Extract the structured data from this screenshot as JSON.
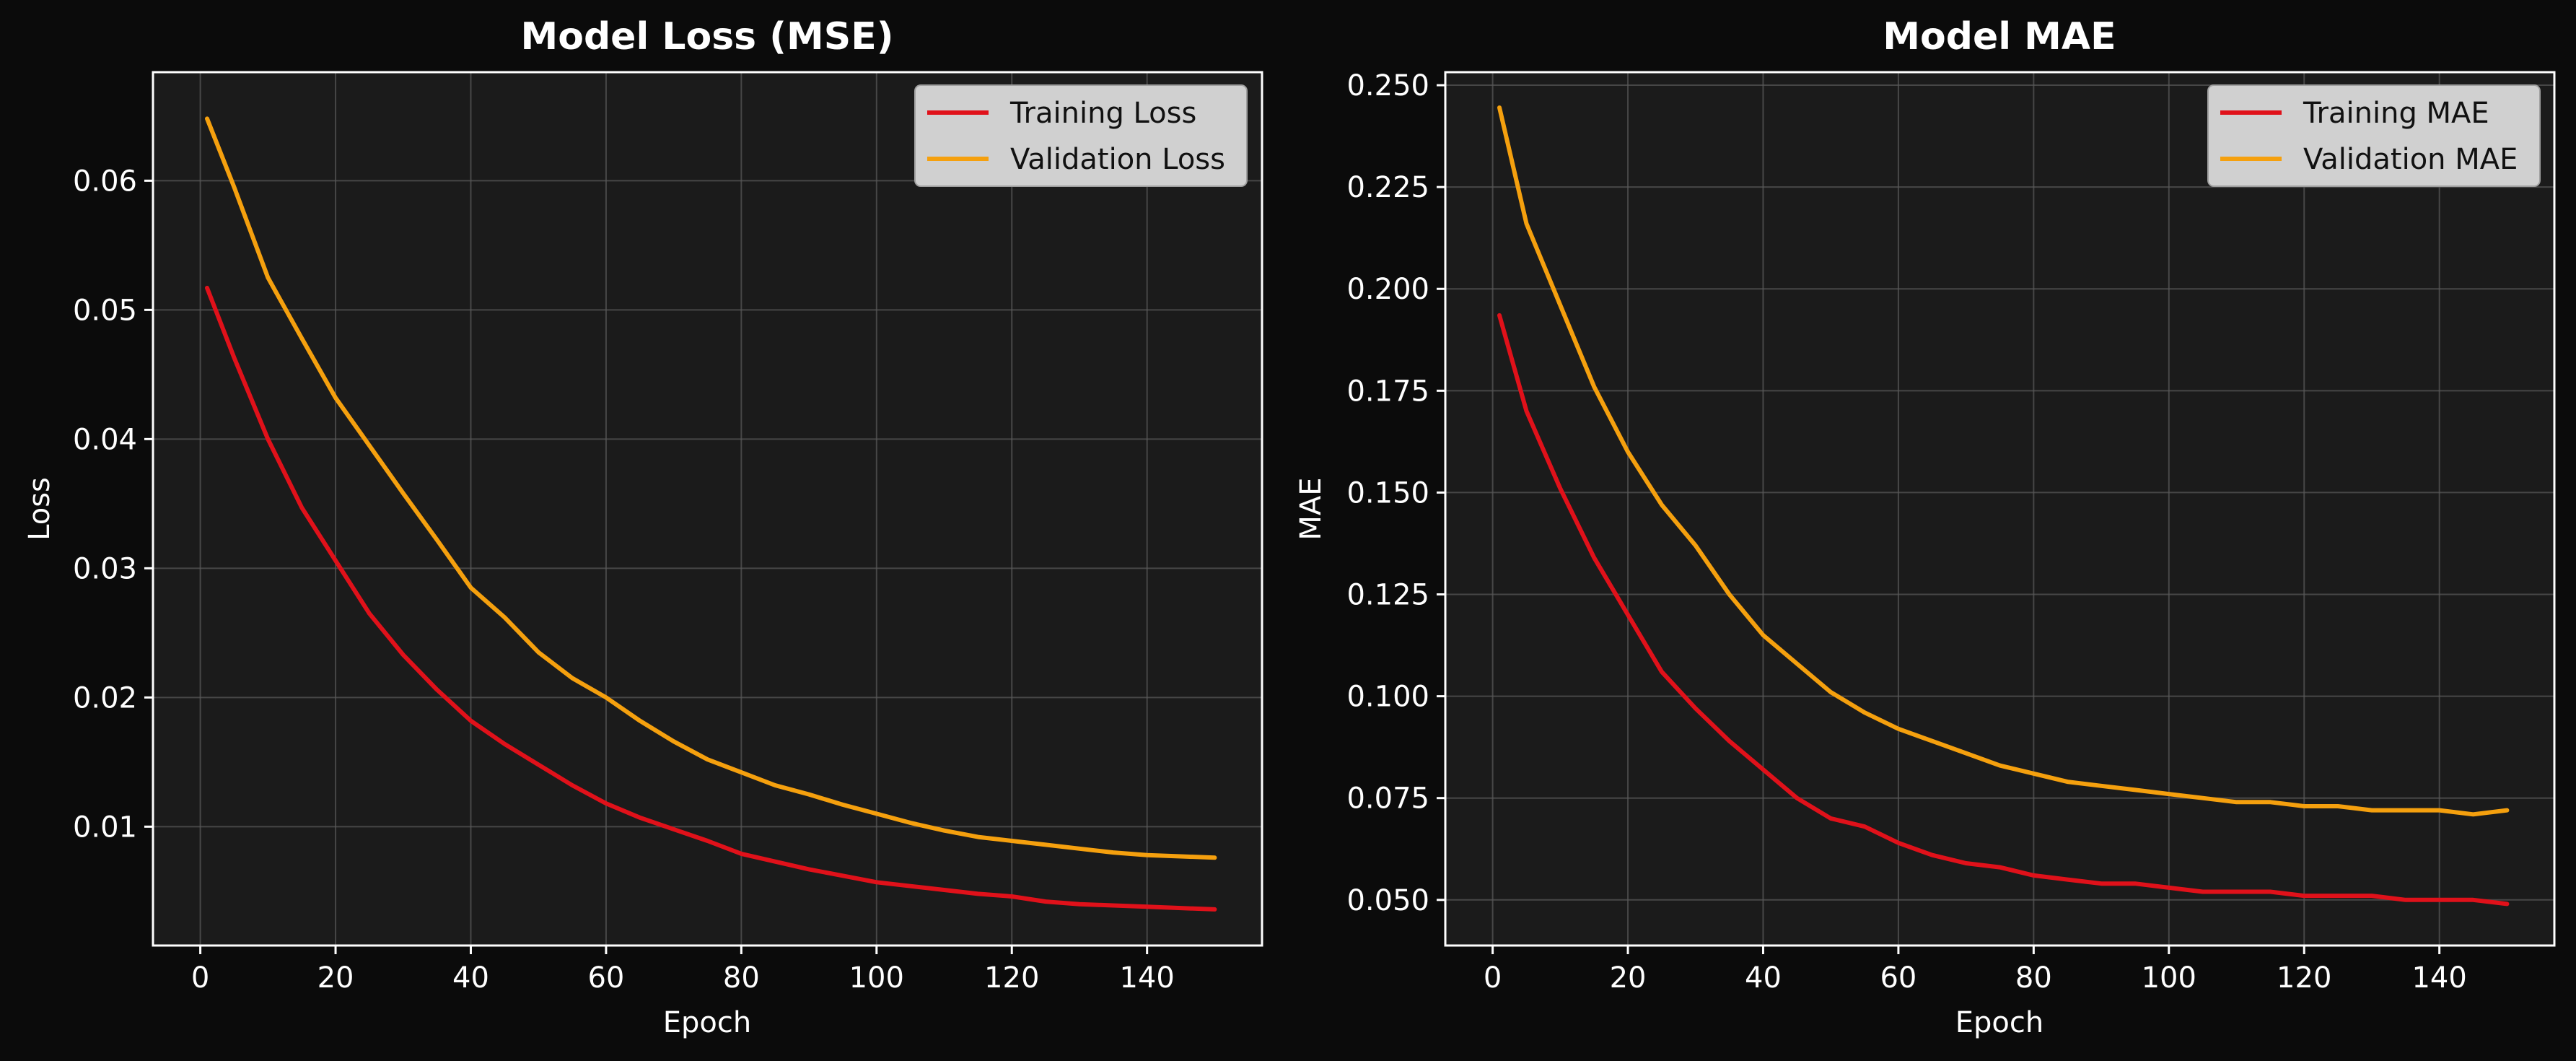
{
  "colors": {
    "figure_bg": "#0b0b0b",
    "axes_bg": "#1b1b1b",
    "text": "#ffffff",
    "grid": "#5a5a5a",
    "training": "#e0111a",
    "validation": "#f5a00e",
    "legend_bg": "#d0d0d0",
    "legend_text": "#111111"
  },
  "chart_data": [
    {
      "type": "line",
      "title": "Model Loss (MSE)",
      "xlabel": "Epoch",
      "ylabel": "Loss",
      "xlim": [
        -7,
        157
      ],
      "ylim": [
        0.0008,
        0.0684
      ],
      "xticks": [
        0,
        20,
        40,
        60,
        80,
        100,
        120,
        140
      ],
      "xtick_labels": [
        "0",
        "20",
        "40",
        "60",
        "80",
        "100",
        "120",
        "140"
      ],
      "yticks": [
        0.01,
        0.02,
        0.03,
        0.04,
        0.05,
        0.06
      ],
      "ytick_labels": [
        "0.01",
        "0.02",
        "0.03",
        "0.04",
        "0.05",
        "0.06"
      ],
      "grid": true,
      "legend": "top-right",
      "x": [
        1,
        5,
        10,
        15,
        20,
        25,
        30,
        35,
        40,
        45,
        50,
        55,
        60,
        65,
        70,
        75,
        80,
        85,
        90,
        95,
        100,
        105,
        110,
        115,
        120,
        125,
        130,
        135,
        140,
        145,
        150
      ],
      "series": [
        {
          "name": "Training Loss",
          "color": "#e0111a",
          "values": [
            0.0517,
            0.0463,
            0.04,
            0.0347,
            0.0306,
            0.0265,
            0.0233,
            0.0206,
            0.0182,
            0.0164,
            0.0148,
            0.0132,
            0.0118,
            0.0107,
            0.0098,
            0.0089,
            0.0079,
            0.0073,
            0.0067,
            0.0062,
            0.0057,
            0.0054,
            0.0051,
            0.0048,
            0.0046,
            0.0042,
            0.004,
            0.0039,
            0.0038,
            0.0037,
            0.0036
          ]
        },
        {
          "name": "Validation Loss",
          "color": "#f5a00e",
          "values": [
            0.0648,
            0.0595,
            0.0525,
            0.0478,
            0.0432,
            0.0395,
            0.0358,
            0.0322,
            0.0285,
            0.0262,
            0.0235,
            0.0215,
            0.02,
            0.0182,
            0.0166,
            0.0152,
            0.0142,
            0.0132,
            0.0125,
            0.0117,
            0.011,
            0.0103,
            0.0097,
            0.0092,
            0.0089,
            0.0086,
            0.0083,
            0.008,
            0.0078,
            0.0077,
            0.0076
          ]
        }
      ]
    },
    {
      "type": "line",
      "title": "Model MAE",
      "xlabel": "Epoch",
      "ylabel": "MAE",
      "xlim": [
        -7,
        157
      ],
      "ylim": [
        0.0388,
        0.2532
      ],
      "xticks": [
        0,
        20,
        40,
        60,
        80,
        100,
        120,
        140
      ],
      "xtick_labels": [
        "0",
        "20",
        "40",
        "60",
        "80",
        "100",
        "120",
        "140"
      ],
      "yticks": [
        0.05,
        0.075,
        0.1,
        0.125,
        0.15,
        0.175,
        0.2,
        0.225,
        0.25
      ],
      "ytick_labels": [
        "0.050",
        "0.075",
        "0.100",
        "0.125",
        "0.150",
        "0.175",
        "0.200",
        "0.225",
        "0.250"
      ],
      "grid": true,
      "legend": "top-right",
      "x": [
        1,
        5,
        10,
        15,
        20,
        25,
        30,
        35,
        40,
        45,
        50,
        55,
        60,
        65,
        70,
        75,
        80,
        85,
        90,
        95,
        100,
        105,
        110,
        115,
        120,
        125,
        130,
        135,
        140,
        145,
        150
      ],
      "series": [
        {
          "name": "Training MAE",
          "color": "#e0111a",
          "values": [
            0.1935,
            0.17,
            0.151,
            0.134,
            0.12,
            0.106,
            0.097,
            0.089,
            0.082,
            0.075,
            0.07,
            0.068,
            0.064,
            0.061,
            0.059,
            0.058,
            0.056,
            0.055,
            0.054,
            0.054,
            0.053,
            0.052,
            0.052,
            0.052,
            0.051,
            0.051,
            0.051,
            0.05,
            0.05,
            0.05,
            0.049
          ]
        },
        {
          "name": "Validation MAE",
          "color": "#f5a00e",
          "values": [
            0.2445,
            0.216,
            0.196,
            0.176,
            0.16,
            0.147,
            0.137,
            0.125,
            0.115,
            0.108,
            0.101,
            0.096,
            0.092,
            0.089,
            0.086,
            0.083,
            0.081,
            0.079,
            0.078,
            0.077,
            0.076,
            0.075,
            0.074,
            0.074,
            0.073,
            0.073,
            0.072,
            0.072,
            0.072,
            0.071,
            0.072
          ]
        }
      ]
    }
  ]
}
